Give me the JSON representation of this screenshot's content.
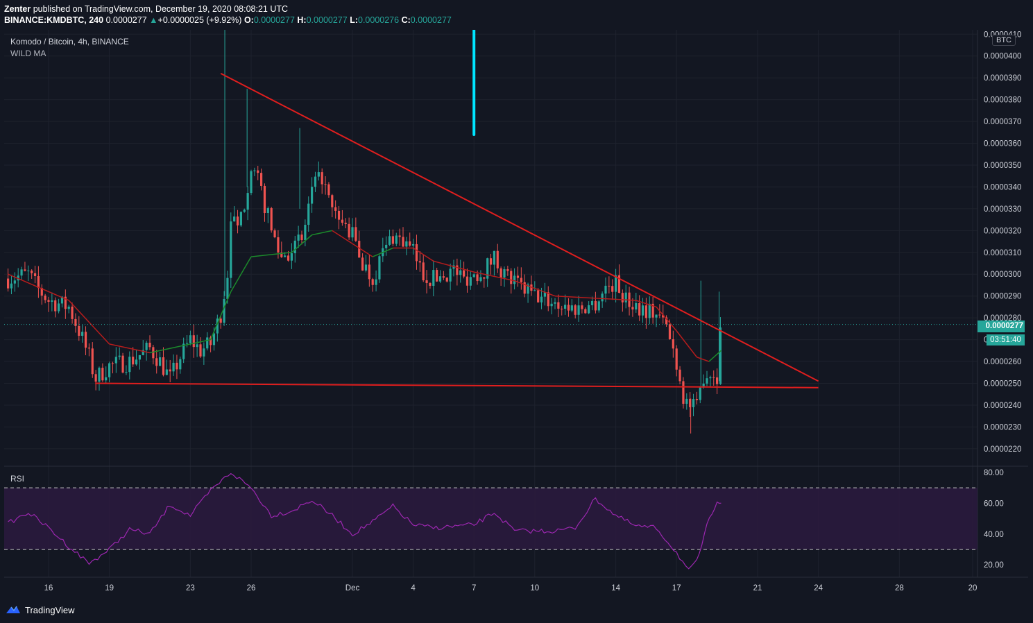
{
  "header": {
    "author": "Zenter",
    "published": "published on TradingView.com, December 19, 2020 08:08:21 UTC",
    "symbol": "BINANCE:KMDBTC, 240",
    "last": "0.0000277",
    "change": "+0.0000025 (+9.92%)",
    "o_label": "O:",
    "o_val": "0.0000277",
    "h_label": "H:",
    "h_val": "0.0000277",
    "l_label": "L:",
    "l_val": "0.0000276",
    "c_label": "C:",
    "c_val": "0.0000277"
  },
  "legend": {
    "title": "Komodo / Bitcoin, 4h, BINANCE",
    "indicator": "WILD MA",
    "rsi": "RSI"
  },
  "price_axis": {
    "currency": "BTC",
    "last_price": "0.0000277",
    "countdown": "03:51:40"
  },
  "footer": {
    "brand": "TradingView"
  },
  "colors": {
    "background": "#131722",
    "up": "#26a69a",
    "down": "#ef5350",
    "ma": "#b71c1c",
    "ma_up": "#1b8a2b",
    "trendline": "#e01e1e",
    "rsi_line": "#9c27b0",
    "rsi_band": "#2b1a3e",
    "marker": "#00e5ff"
  },
  "chart_data": {
    "type": "candlestick",
    "title": "Komodo / Bitcoin, 4h, BINANCE",
    "y_unit": "BTC",
    "ylim": [
      2.12e-05,
      4.12e-05
    ],
    "y_ticks": [
      "0.0000220",
      "0.0000230",
      "0.0000240",
      "0.0000250",
      "0.0000260",
      "0.0000270",
      "0.0000280",
      "0.0000290",
      "0.0000300",
      "0.0000310",
      "0.0000320",
      "0.0000330",
      "0.0000340",
      "0.0000350",
      "0.0000360",
      "0.0000370",
      "0.0000380",
      "0.0000390",
      "0.0000400",
      "0.0000410"
    ],
    "x_ticks": [
      "16",
      "19",
      "23",
      "26",
      "Dec",
      "4",
      "7",
      "10",
      "14",
      "17",
      "21",
      "24",
      "28",
      "20"
    ],
    "x_range": [
      "Nov 14, 2020",
      "Dec 24, 2020"
    ],
    "price_path": [
      [
        "Nov 14",
        2.98e-05
      ],
      [
        "Nov 15",
        3e-05
      ],
      [
        "Nov 15.5",
        2.93e-05
      ],
      [
        "Nov 16",
        2.88e-05
      ],
      [
        "Nov 17",
        2.85e-05
      ],
      [
        "Nov 17.6",
        2.72e-05
      ],
      [
        "Nov 18",
        2.62e-05
      ],
      [
        "Nov 18.3",
        2.52e-05
      ],
      [
        "Nov 19",
        2.58e-05
      ],
      [
        "Nov 20",
        2.6e-05
      ],
      [
        "Nov 21",
        2.66e-05
      ],
      [
        "Nov 21.5",
        2.6e-05
      ],
      [
        "Nov 22",
        2.52e-05
      ],
      [
        "Nov 22.5",
        2.62e-05
      ],
      [
        "Nov 23",
        2.7e-05
      ],
      [
        "Nov 23.5",
        2.65e-05
      ],
      [
        "Nov 24",
        2.68e-05
      ],
      [
        "Nov 24.5",
        2.82e-05
      ],
      [
        "Nov 25",
        3.1e-05
      ],
      [
        "Nov 25.5",
        3.25e-05
      ],
      [
        "Nov 26",
        3.5e-05
      ],
      [
        "Nov 26.5",
        3.38e-05
      ],
      [
        "Nov 27",
        3.2e-05
      ],
      [
        "Nov 27.5",
        3.08e-05
      ],
      [
        "Nov 28",
        3.12e-05
      ],
      [
        "Nov 28.5",
        3.15e-05
      ],
      [
        "Nov 29",
        3.38e-05
      ],
      [
        "Nov 29.5",
        3.45e-05
      ],
      [
        "Nov 30",
        3.28e-05
      ],
      [
        "Dec 1",
        3.18e-05
      ],
      [
        "Dec 1.5",
        3.05e-05
      ],
      [
        "Dec 2",
        2.98e-05
      ],
      [
        "Dec 2.5",
        3.1e-05
      ],
      [
        "Dec 3",
        3.18e-05
      ],
      [
        "Dec 3.5",
        3.15e-05
      ],
      [
        "Dec 4",
        3.1e-05
      ],
      [
        "Dec 4.5",
        3e-05
      ],
      [
        "Dec 5",
        2.98e-05
      ],
      [
        "Dec 6",
        3.02e-05
      ],
      [
        "Dec 6.5",
        2.98e-05
      ],
      [
        "Dec 7",
        3e-05
      ],
      [
        "Dec 7.5",
        3.02e-05
      ],
      [
        "Dec 8",
        3.08e-05
      ],
      [
        "Dec 8.5",
        3e-05
      ],
      [
        "Dec 9",
        2.96e-05
      ],
      [
        "Dec 10",
        2.9e-05
      ],
      [
        "Dec 11",
        2.87e-05
      ],
      [
        "Dec 12",
        2.84e-05
      ],
      [
        "Dec 13",
        2.87e-05
      ],
      [
        "Dec 13.5",
        2.94e-05
      ],
      [
        "Dec 14",
        2.96e-05
      ],
      [
        "Dec 14.5",
        2.88e-05
      ],
      [
        "Dec 15",
        2.86e-05
      ],
      [
        "Dec 16",
        2.82e-05
      ],
      [
        "Dec 16.5",
        2.76e-05
      ],
      [
        "Dec 17",
        2.6e-05
      ],
      [
        "Dec 17.3",
        2.45e-05
      ],
      [
        "Dec 17.6",
        2.4e-05
      ],
      [
        "Dec 18",
        2.38e-05
      ],
      [
        "Dec 18.3",
        2.54e-05
      ],
      [
        "Dec 18.6",
        2.55e-05
      ],
      [
        "Dec 19",
        2.54e-05
      ],
      [
        "Dec 19.2",
        2.77e-05
      ]
    ],
    "wild_ma": [
      [
        "Nov 14",
        3e-05
      ],
      [
        "Nov 17",
        2.88e-05
      ],
      [
        "Nov 19",
        2.68e-05
      ],
      [
        "Nov 21",
        2.64e-05
      ],
      [
        "Nov 23",
        2.68e-05
      ],
      [
        "Nov 24",
        2.7e-05
      ],
      [
        "Nov 25",
        2.92e-05
      ],
      [
        "Nov 26",
        3.08e-05
      ],
      [
        "Nov 28",
        3.1e-05
      ],
      [
        "Nov 29",
        3.18e-05
      ],
      [
        "Nov 30",
        3.2e-05
      ],
      [
        "Dec 2",
        3.08e-05
      ],
      [
        "Dec 3",
        3.12e-05
      ],
      [
        "Dec 4",
        3.12e-05
      ],
      [
        "Dec 5",
        3.06e-05
      ],
      [
        "Dec 7",
        3.01e-05
      ],
      [
        "Dec 9",
        2.97e-05
      ],
      [
        "Dec 11",
        2.9e-05
      ],
      [
        "Dec 13",
        2.89e-05
      ],
      [
        "Dec 15",
        2.88e-05
      ],
      [
        "Dec 16",
        2.85e-05
      ],
      [
        "Dec 17",
        2.74e-05
      ],
      [
        "Dec 18",
        2.62e-05
      ],
      [
        "Dec 18.6",
        2.6e-05
      ],
      [
        "Dec 19.2",
        2.65e-05
      ]
    ],
    "trendlines": [
      {
        "name": "descending resistance",
        "from": [
          "Nov 24.5",
          3.92e-05
        ],
        "to": [
          "Dec 24",
          2.51e-05
        ]
      },
      {
        "name": "horizontal support",
        "from": [
          "Nov 18.3",
          2.5e-05
        ],
        "to": [
          "Dec 24",
          2.48e-05
        ]
      }
    ],
    "vertical_marker": {
      "date": "Dec 7",
      "from": 4.12e-05,
      "to": 3.64e-05
    },
    "rsi": {
      "ylim": [
        12,
        84
      ],
      "y_ticks": [
        "20.00",
        "40.00",
        "60.00",
        "80.00"
      ],
      "band": [
        30,
        70
      ],
      "values": [
        [
          "Nov 14",
          47
        ],
        [
          "Nov 15",
          54
        ],
        [
          "Nov 16",
          44
        ],
        [
          "Nov 17",
          32
        ],
        [
          "Nov 18",
          21
        ],
        [
          "Nov 19",
          30
        ],
        [
          "Nov 20",
          43
        ],
        [
          "Nov 21",
          40
        ],
        [
          "Nov 22",
          59
        ],
        [
          "Nov 23",
          52
        ],
        [
          "Nov 24",
          68
        ],
        [
          "Nov 25",
          80
        ],
        [
          "Nov 26",
          70
        ],
        [
          "Nov 27",
          52
        ],
        [
          "Nov 28",
          55
        ],
        [
          "Nov 29",
          62
        ],
        [
          "Nov 30",
          52
        ],
        [
          "Dec 1",
          40
        ],
        [
          "Dec 2",
          48
        ],
        [
          "Dec 3",
          58
        ],
        [
          "Dec 4",
          46
        ],
        [
          "Dec 5",
          44
        ],
        [
          "Dec 7",
          46
        ],
        [
          "Dec 8",
          54
        ],
        [
          "Dec 9",
          42
        ],
        [
          "Dec 11",
          42
        ],
        [
          "Dec 12",
          44
        ],
        [
          "Dec 13",
          63
        ],
        [
          "Dec 14",
          52
        ],
        [
          "Dec 15",
          45
        ],
        [
          "Dec 16",
          44
        ],
        [
          "Dec 17",
          28
        ],
        [
          "Dec 17.6",
          16
        ],
        [
          "Dec 18",
          22
        ],
        [
          "Dec 18.5",
          45
        ],
        [
          "Dec 19",
          62
        ],
        [
          "Dec 19.2",
          60
        ]
      ]
    }
  }
}
